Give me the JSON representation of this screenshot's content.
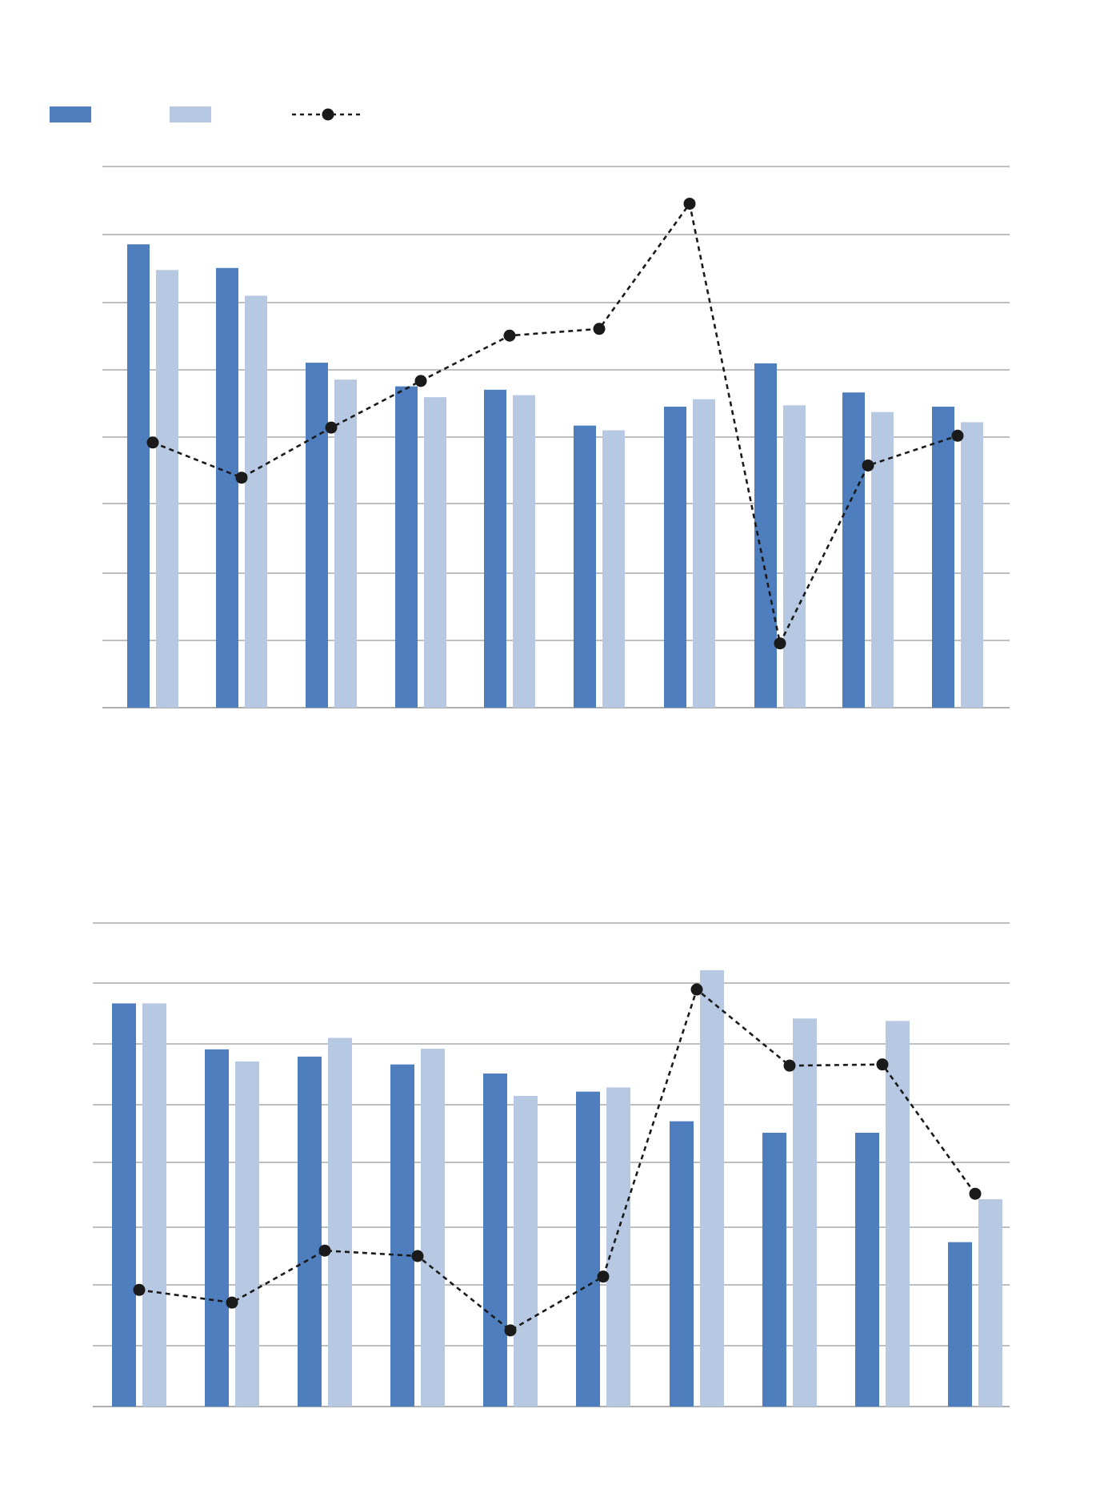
{
  "legend": [
    {
      "key": "series_a",
      "color": "#4e7ebe"
    },
    {
      "key": "series_b",
      "color": "#b7c9e2"
    },
    {
      "key": "line",
      "style": "dashed-with-dot",
      "color": "#1a1a1a"
    }
  ],
  "chart_data": [
    {
      "type": "bar",
      "title": "",
      "xlabel": "",
      "ylabel": "",
      "categories": [
        "",
        "",
        "",
        "",
        "",
        "",
        "",
        "",
        "",
        ""
      ],
      "ylim": [
        0,
        8
      ],
      "grid": true,
      "series": [
        {
          "key": "series_a",
          "values": [
            6.85,
            6.5,
            5.1,
            4.75,
            4.7,
            4.17,
            4.45,
            5.09,
            4.66,
            4.45
          ]
        },
        {
          "key": "series_b",
          "values": [
            6.47,
            6.09,
            4.85,
            4.59,
            4.62,
            4.1,
            4.56,
            4.47,
            4.37,
            4.22
          ]
        }
      ],
      "line": {
        "key": "line",
        "style": "dashed",
        "y2lim": [
          0,
          8
        ],
        "values": [
          3.92,
          3.4,
          4.14,
          4.83,
          5.5,
          5.6,
          7.45,
          0.95,
          3.58,
          4.02
        ]
      },
      "colors": {
        "series_a": "#4e7ebe",
        "series_b": "#b7c9e2",
        "line": "#1a1a1a",
        "grid": "#7f7f7f"
      }
    },
    {
      "type": "bar",
      "title": "",
      "xlabel": "",
      "ylabel": "",
      "categories": [
        "",
        "",
        "",
        "",
        "",
        "",
        "",
        "",
        "",
        ""
      ],
      "ylim": [
        0,
        8
      ],
      "grid": true,
      "series": [
        {
          "key": "series_a",
          "values": [
            6.67,
            5.91,
            5.79,
            5.66,
            5.51,
            5.21,
            4.72,
            4.53,
            4.53,
            2.72
          ]
        },
        {
          "key": "series_b",
          "values": [
            6.67,
            5.71,
            6.1,
            5.92,
            5.14,
            5.28,
            7.22,
            6.42,
            6.38,
            3.43
          ]
        }
      ],
      "line": {
        "key": "line",
        "style": "dashed",
        "y2lim": [
          0,
          8
        ],
        "values": [
          1.93,
          1.72,
          2.58,
          2.49,
          1.26,
          2.15,
          6.9,
          5.64,
          5.66,
          3.52
        ]
      },
      "colors": {
        "series_a": "#4e7ebe",
        "series_b": "#b7c9e2",
        "line": "#1a1a1a",
        "grid": "#7f7f7f"
      }
    }
  ]
}
